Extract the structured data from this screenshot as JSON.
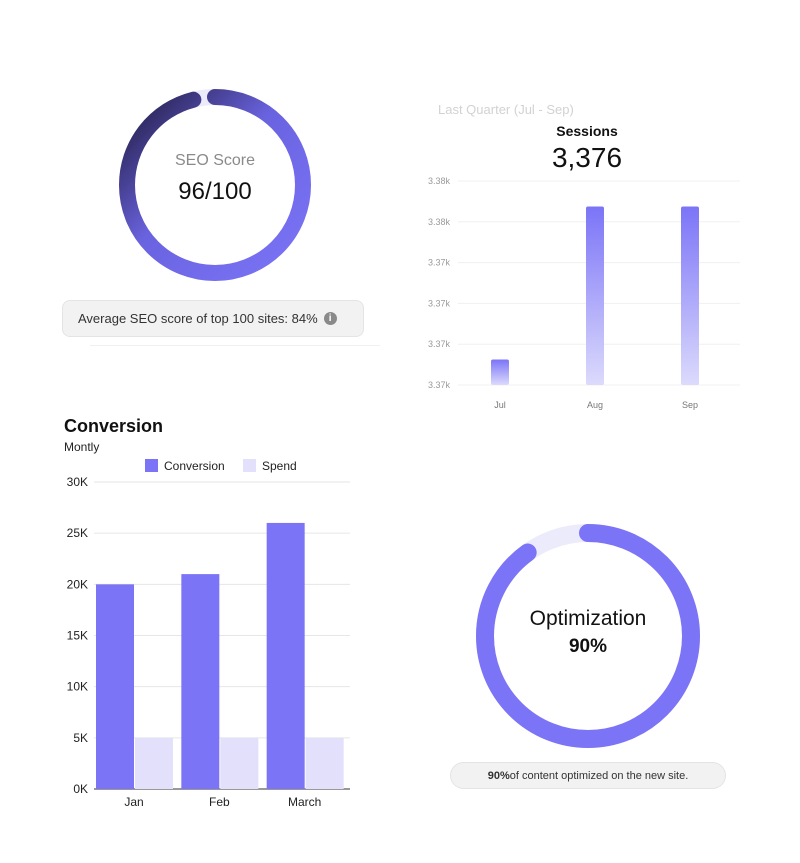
{
  "seo_panel": {
    "label": "SEO Score",
    "score": "96/100",
    "score_value": 96,
    "score_max": 100,
    "average_note": "Average SEO score of top 100 sites: 84%",
    "info_icon": "info-icon"
  },
  "sessions_panel": {
    "period": "Last Quarter (Jul - Sep)",
    "title": "Sessions",
    "total": "3,376"
  },
  "conversion_panel": {
    "title": "Conversion",
    "subtitle": "Montly"
  },
  "optimization_panel": {
    "label": "Optimization",
    "percent_text": "90%",
    "percent_value": 90,
    "note_bold": "90%",
    "note_rest": " of content optimized on the new site."
  },
  "colors": {
    "primary": "#7b74f7",
    "primary_light": "#e2e0fb",
    "dark_gradient_end": "#1f1a3e",
    "track": "#ecebfb",
    "grid": "#eeeeee"
  },
  "chart_data": [
    {
      "type": "bar",
      "title": "Sessions",
      "categories": [
        "Jul",
        "Aug",
        "Sep"
      ],
      "values": [
        3368,
        3380,
        3380
      ],
      "ytick_labels": [
        "3.37k",
        "3.37k",
        "3.37k",
        "3.37k",
        "3.38k",
        "3.38k"
      ],
      "ylim": [
        3366,
        3382
      ],
      "grid": true
    },
    {
      "type": "bar",
      "title": "Conversion",
      "categories": [
        "Jan",
        "Feb",
        "March"
      ],
      "series": [
        {
          "name": "Conversion",
          "values": [
            20000,
            21000,
            26000
          ],
          "color": "#7b74f7"
        },
        {
          "name": "Spend",
          "values": [
            5000,
            5000,
            5000
          ],
          "color": "#e2e0fb"
        }
      ],
      "ytick_labels": [
        "0K",
        "5K",
        "10K",
        "15K",
        "20K",
        "25K",
        "30K"
      ],
      "ylim": [
        0,
        30000
      ],
      "legend": "top",
      "grid": true
    }
  ]
}
